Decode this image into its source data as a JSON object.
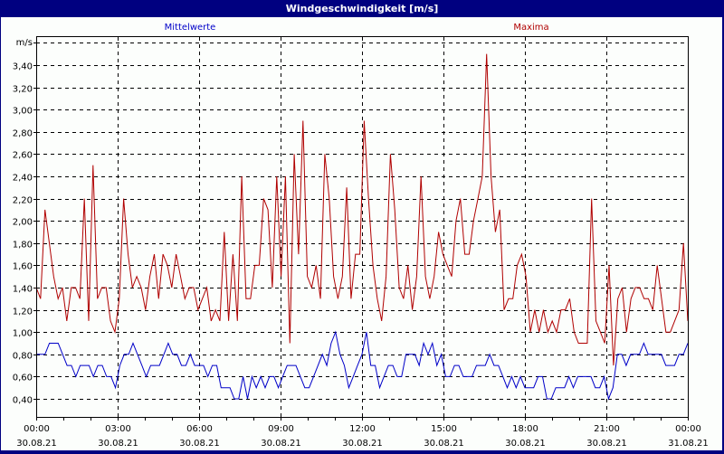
{
  "window": {
    "title": "Windgeschwindigkeit [m/s]"
  },
  "legend": {
    "mean_label": "Mittelwerte",
    "max_label": "Maxima"
  },
  "colors": {
    "mean": "#0000c8",
    "max": "#b00000",
    "frame": "#000080",
    "grid": "#000000"
  },
  "chart_data": {
    "type": "line",
    "title": "Windgeschwindigkeit [m/s]",
    "xlabel": "",
    "ylabel": "m/s",
    "ylim": [
      0.24,
      3.6
    ],
    "grid": true,
    "legend_position": "top",
    "y_ticks": [
      "0,40",
      "0,60",
      "0,80",
      "1,00",
      "1,20",
      "1,40",
      "1,60",
      "1,80",
      "2,00",
      "2,20",
      "2,40",
      "2,60",
      "2,80",
      "3,00",
      "3,20",
      "3,40"
    ],
    "x_ticks": [
      {
        "time": "00:00",
        "date": "30.08.21"
      },
      {
        "time": "03:00",
        "date": "30.08.21"
      },
      {
        "time": "06:00",
        "date": "30.08.21"
      },
      {
        "time": "09:00",
        "date": "30.08.21"
      },
      {
        "time": "12:00",
        "date": "30.08.21"
      },
      {
        "time": "15:00",
        "date": "30.08.21"
      },
      {
        "time": "18:00",
        "date": "30.08.21"
      },
      {
        "time": "21:00",
        "date": "30.08.21"
      },
      {
        "time": "00:00",
        "date": "31.08.21"
      }
    ],
    "x_interval_minutes": 10,
    "series": [
      {
        "name": "Maxima",
        "values": [
          1.4,
          1.3,
          2.1,
          1.8,
          1.5,
          1.3,
          1.4,
          1.1,
          1.4,
          1.4,
          1.3,
          2.2,
          1.1,
          2.5,
          1.3,
          1.4,
          1.4,
          1.1,
          1.0,
          1.3,
          2.2,
          1.7,
          1.4,
          1.5,
          1.4,
          1.2,
          1.5,
          1.7,
          1.3,
          1.7,
          1.6,
          1.4,
          1.7,
          1.5,
          1.3,
          1.4,
          1.4,
          1.2,
          1.3,
          1.4,
          1.1,
          1.2,
          1.1,
          1.9,
          1.1,
          1.7,
          1.1,
          2.4,
          1.3,
          1.3,
          1.6,
          1.6,
          2.2,
          2.1,
          1.4,
          2.4,
          1.5,
          2.4,
          0.9,
          2.6,
          1.7,
          2.9,
          1.5,
          1.4,
          1.6,
          1.3,
          2.6,
          2.2,
          1.5,
          1.3,
          1.5,
          2.3,
          1.3,
          1.7,
          1.7,
          2.9,
          2.2,
          1.6,
          1.3,
          1.1,
          1.5,
          2.6,
          2.1,
          1.4,
          1.3,
          1.6,
          1.2,
          1.5,
          2.4,
          1.5,
          1.3,
          1.5,
          1.9,
          1.7,
          1.6,
          1.5,
          2.0,
          2.2,
          1.7,
          1.7,
          2.0,
          2.2,
          2.4,
          3.5,
          2.4,
          1.9,
          2.1,
          1.2,
          1.3,
          1.3,
          1.6,
          1.7,
          1.5,
          1.0,
          1.2,
          1.0,
          1.2,
          1.0,
          1.1,
          1.0,
          1.2,
          1.2,
          1.3,
          1.0,
          0.9,
          0.9,
          0.9,
          2.2,
          1.1,
          1.0,
          0.9,
          1.6,
          0.7,
          1.3,
          1.4,
          1.0,
          1.3,
          1.4,
          1.4,
          1.3,
          1.3,
          1.2,
          1.6,
          1.3,
          1.0,
          1.0,
          1.1,
          1.2,
          1.8,
          1.1
        ]
      },
      {
        "name": "Mittelwerte",
        "values": [
          0.8,
          0.8,
          0.8,
          0.9,
          0.9,
          0.9,
          0.8,
          0.7,
          0.7,
          0.6,
          0.7,
          0.7,
          0.7,
          0.6,
          0.7,
          0.7,
          0.6,
          0.6,
          0.5,
          0.7,
          0.8,
          0.8,
          0.9,
          0.8,
          0.7,
          0.6,
          0.7,
          0.7,
          0.7,
          0.8,
          0.9,
          0.8,
          0.8,
          0.7,
          0.7,
          0.8,
          0.7,
          0.7,
          0.7,
          0.6,
          0.7,
          0.7,
          0.5,
          0.5,
          0.5,
          0.4,
          0.4,
          0.6,
          0.4,
          0.6,
          0.5,
          0.6,
          0.5,
          0.6,
          0.6,
          0.5,
          0.6,
          0.7,
          0.7,
          0.7,
          0.6,
          0.5,
          0.5,
          0.6,
          0.7,
          0.8,
          0.7,
          0.9,
          1.0,
          0.8,
          0.7,
          0.5,
          0.6,
          0.7,
          0.8,
          1.0,
          0.7,
          0.7,
          0.5,
          0.6,
          0.7,
          0.7,
          0.6,
          0.6,
          0.8,
          0.8,
          0.8,
          0.7,
          0.9,
          0.8,
          0.9,
          0.7,
          0.8,
          0.6,
          0.6,
          0.7,
          0.7,
          0.6,
          0.6,
          0.6,
          0.7,
          0.7,
          0.7,
          0.8,
          0.7,
          0.7,
          0.6,
          0.5,
          0.6,
          0.5,
          0.6,
          0.5,
          0.5,
          0.5,
          0.6,
          0.6,
          0.4,
          0.4,
          0.5,
          0.5,
          0.5,
          0.6,
          0.5,
          0.6,
          0.6,
          0.6,
          0.6,
          0.5,
          0.5,
          0.6,
          0.4,
          0.5,
          0.8,
          0.8,
          0.7,
          0.8,
          0.8,
          0.8,
          0.9,
          0.8,
          0.8,
          0.8,
          0.8,
          0.7,
          0.7,
          0.7,
          0.8,
          0.8,
          0.9
        ]
      }
    ]
  }
}
